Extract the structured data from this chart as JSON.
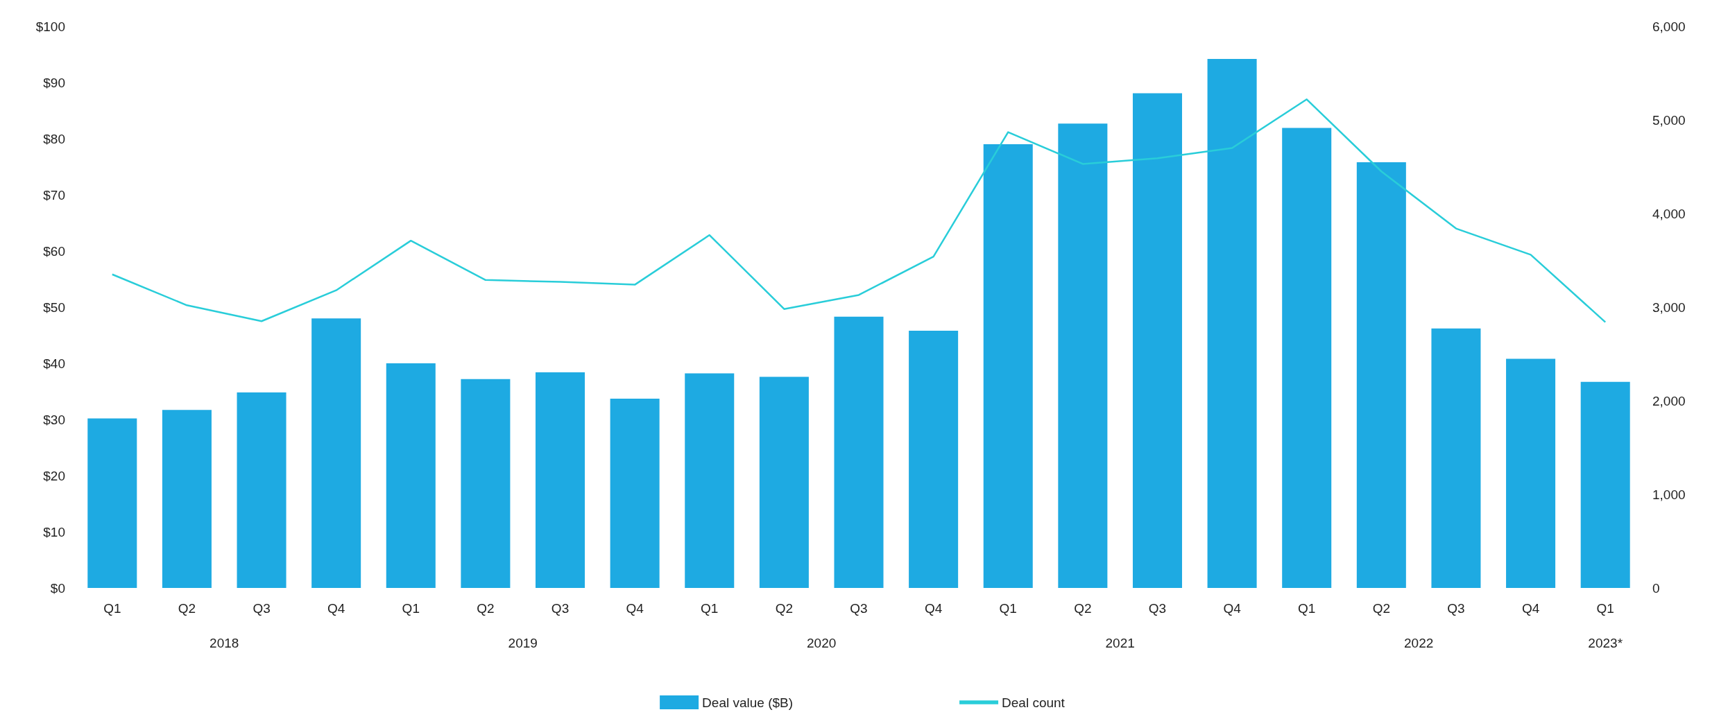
{
  "chart_data": {
    "type": "bar",
    "categories": [
      "Q1",
      "Q2",
      "Q3",
      "Q4",
      "Q1",
      "Q2",
      "Q3",
      "Q4",
      "Q1",
      "Q2",
      "Q3",
      "Q4",
      "Q1",
      "Q2",
      "Q3",
      "Q4",
      "Q1",
      "Q2",
      "Q3",
      "Q4",
      "Q1"
    ],
    "series": [
      {
        "name": "Deal value ($B)",
        "color": "#1eaae2",
        "values": [
          30.2,
          31.7,
          34.8,
          48.0,
          40.0,
          37.2,
          38.4,
          33.7,
          38.2,
          37.6,
          48.3,
          45.8,
          79.0,
          82.7,
          88.1,
          94.2,
          81.9,
          75.8,
          46.2,
          40.8,
          36.7
        ]
      },
      {
        "name": "Deal count",
        "type": "line",
        "axis": "y2",
        "color": "#29cdd9",
        "marker": "none",
        "values": [
          3350,
          3020,
          2850,
          3180,
          3710,
          3290,
          3270,
          3240,
          3770,
          2980,
          3130,
          3540,
          4870,
          4530,
          4590,
          4700,
          5220,
          4450,
          3840,
          3560,
          2840
        ]
      }
    ],
    "annotations": [
      "2018",
      "2019",
      "2020",
      "2021",
      "2022",
      "2023*"
    ],
    "ylim": [
      0,
      100
    ],
    "yticks": [
      {
        "value": 0,
        "label": "$0"
      },
      {
        "value": 10,
        "label": "$10"
      },
      {
        "value": 20,
        "label": "$20"
      },
      {
        "value": 30,
        "label": "$30"
      },
      {
        "value": 40,
        "label": "$40"
      },
      {
        "value": 50,
        "label": "$50"
      },
      {
        "value": 60,
        "label": "$60"
      },
      {
        "value": 70,
        "label": "$70"
      },
      {
        "value": 80,
        "label": "$80"
      },
      {
        "value": 90,
        "label": "$90"
      },
      {
        "value": 100,
        "label": "$100"
      }
    ],
    "y2lim": [
      0,
      6000
    ],
    "y2ticks": [
      0,
      {
        "value": 1000,
        "label": "1,000"
      },
      {
        "value": 2000,
        "label": "2,000"
      },
      {
        "value": 3000,
        "label": "3,000"
      },
      {
        "value": 4000,
        "label": "4,000"
      },
      {
        "value": 5000,
        "label": "5,000"
      },
      {
        "value": 6000,
        "label": "6,000"
      }
    ],
    "grid": false,
    "legend": "bottom"
  }
}
